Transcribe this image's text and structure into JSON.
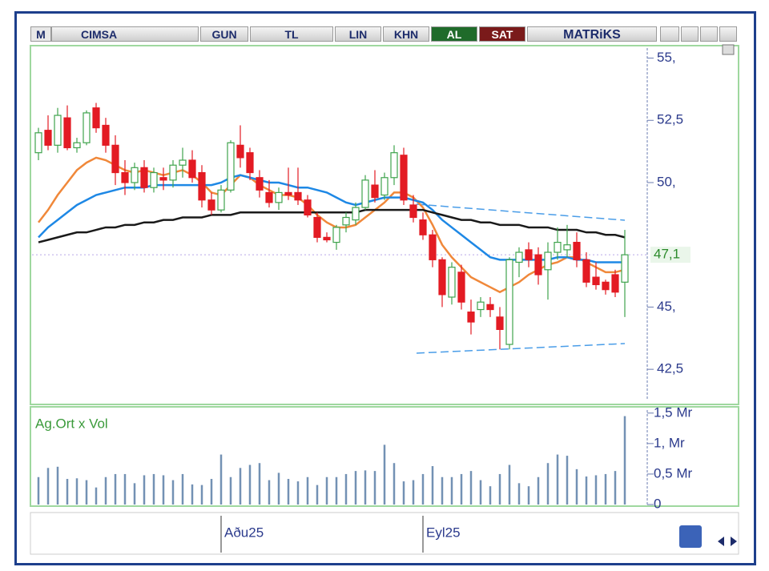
{
  "toolbar": {
    "logo": "M",
    "symbol": "CIMSA",
    "period": "GUN",
    "currency": "TL",
    "scale": "LIN",
    "mode": "KHN",
    "buy": "AL",
    "sell": "SAT",
    "brand": "MATRiKS"
  },
  "chart_data": [
    {
      "type": "candlestick",
      "categories": [
        null,
        null,
        null,
        null,
        null,
        null,
        null,
        null,
        null,
        null,
        null,
        null,
        null,
        null,
        null,
        null,
        null,
        null,
        null,
        "Aðu25",
        null,
        null,
        null,
        null,
        null,
        null,
        null,
        null,
        null,
        null,
        null,
        null,
        null,
        null,
        null,
        null,
        null,
        null,
        null,
        null,
        "Eyl25",
        null,
        null,
        null,
        null,
        null,
        null,
        null,
        null,
        null,
        null,
        null,
        null,
        null,
        null,
        null,
        null,
        null,
        null,
        null,
        null,
        null
      ],
      "open": [
        51.2,
        52.1,
        51.5,
        52.6,
        51.4,
        51.6,
        53.0,
        52.3,
        51.5,
        50.4,
        50.0,
        50.6,
        49.8,
        50.2,
        50.1,
        50.7,
        50.9,
        50.4,
        49.3,
        48.9,
        49.7,
        51.5,
        51.2,
        50.2,
        49.6,
        49.2,
        49.6,
        49.6,
        49.3,
        48.6,
        47.8,
        47.6,
        48.3,
        48.5,
        49.0,
        49.9,
        49.5,
        50.2,
        51.1,
        49.1,
        48.5,
        47.9,
        46.9,
        45.4,
        46.4,
        44.8,
        44.9,
        45.1,
        44.6,
        43.5,
        46.8,
        47.3,
        47.1,
        46.5,
        47.2,
        47.3,
        47.6,
        46.9,
        46.2,
        46.0,
        46.3,
        46.0
      ],
      "high": [
        52.2,
        52.7,
        53.0,
        53.1,
        51.8,
        52.9,
        53.2,
        52.6,
        51.9,
        50.9,
        50.8,
        50.9,
        50.6,
        50.6,
        50.9,
        51.4,
        51.3,
        50.7,
        49.6,
        49.9,
        51.7,
        52.3,
        51.4,
        50.5,
        50.1,
        49.8,
        50.6,
        50.6,
        49.5,
        48.8,
        48.0,
        48.3,
        48.8,
        49.2,
        50.3,
        50.5,
        50.4,
        51.5,
        51.4,
        49.5,
        48.8,
        48.1,
        47.0,
        46.8,
        46.7,
        45.3,
        45.4,
        45.4,
        45.0,
        47.0,
        47.4,
        47.6,
        47.4,
        47.6,
        48.2,
        48.3,
        48.0,
        47.2,
        46.8,
        46.1,
        46.5,
        48.1
      ],
      "low": [
        50.9,
        51.3,
        51.2,
        51.3,
        51.2,
        51.5,
        52.0,
        51.2,
        49.9,
        49.5,
        49.7,
        49.6,
        49.6,
        49.7,
        49.8,
        50.2,
        50.0,
        49.0,
        48.7,
        48.8,
        49.6,
        50.6,
        50.1,
        49.4,
        49.0,
        48.9,
        49.3,
        49.1,
        48.6,
        47.6,
        47.6,
        47.3,
        48.0,
        48.3,
        48.9,
        49.2,
        49.3,
        49.9,
        49.1,
        48.4,
        47.7,
        46.6,
        45.0,
        45.1,
        44.9,
        43.9,
        44.6,
        44.6,
        43.3,
        43.3,
        46.2,
        46.6,
        45.9,
        45.3,
        46.9,
        47.0,
        46.6,
        45.8,
        45.7,
        45.5,
        45.4,
        44.6
      ],
      "close": [
        52.0,
        51.5,
        52.7,
        51.4,
        51.6,
        52.8,
        52.2,
        51.5,
        50.4,
        50.0,
        50.6,
        49.8,
        50.4,
        50.1,
        50.7,
        50.9,
        50.2,
        49.3,
        48.9,
        49.7,
        51.6,
        51.0,
        50.4,
        49.7,
        49.2,
        49.6,
        49.5,
        49.3,
        48.7,
        47.8,
        47.7,
        48.2,
        48.6,
        49.0,
        50.1,
        49.4,
        50.2,
        51.2,
        49.3,
        48.6,
        47.9,
        46.9,
        45.5,
        46.6,
        45.2,
        44.4,
        45.2,
        44.9,
        44.1,
        46.9,
        47.2,
        46.9,
        46.3,
        47.2,
        47.6,
        47.5,
        46.9,
        46.0,
        45.9,
        45.7,
        45.6,
        47.1
      ],
      "up_color": "#3fa34d",
      "down_color": "#e31b23",
      "series": [
        {
          "color": "#f0883a",
          "values": [
            48.4,
            48.9,
            49.5,
            50.0,
            50.5,
            50.8,
            51.0,
            50.9,
            50.7,
            50.5,
            50.4,
            50.5,
            50.4,
            50.3,
            50.4,
            50.5,
            50.3,
            50.0,
            49.6,
            49.5,
            49.9,
            50.3,
            50.2,
            49.9,
            49.7,
            49.5,
            49.5,
            49.4,
            49.1,
            48.7,
            48.4,
            48.2,
            48.2,
            48.3,
            48.6,
            48.9,
            49.2,
            49.6,
            49.6,
            49.4,
            49.0,
            48.3,
            47.5,
            47.0,
            46.6,
            46.2,
            46.0,
            45.8,
            45.6,
            45.8,
            46.0,
            46.3,
            46.5,
            46.7,
            46.8,
            47.0,
            47.0,
            46.8,
            46.6,
            46.4,
            46.4,
            46.5
          ]
        },
        {
          "color": "#1e88e5",
          "values": [
            47.8,
            48.2,
            48.5,
            48.8,
            49.1,
            49.3,
            49.5,
            49.6,
            49.7,
            49.8,
            49.8,
            49.8,
            49.9,
            49.9,
            49.9,
            49.9,
            49.9,
            49.9,
            49.9,
            50.0,
            50.2,
            50.3,
            50.2,
            50.1,
            50.0,
            50.0,
            49.9,
            49.8,
            49.8,
            49.7,
            49.6,
            49.4,
            49.2,
            49.1,
            49.2,
            49.3,
            49.4,
            49.4,
            49.4,
            49.3,
            49.2,
            48.9,
            48.5,
            48.2,
            47.9,
            47.6,
            47.3,
            47.0,
            46.9,
            46.9,
            46.9,
            46.9,
            46.9,
            46.9,
            47.0,
            47.0,
            46.9,
            46.9,
            46.8,
            46.8,
            46.8,
            46.8
          ]
        },
        {
          "color": "#1a1a1a",
          "values": [
            47.6,
            47.7,
            47.8,
            47.9,
            48.0,
            48.0,
            48.1,
            48.2,
            48.2,
            48.3,
            48.3,
            48.4,
            48.4,
            48.5,
            48.5,
            48.6,
            48.6,
            48.6,
            48.7,
            48.7,
            48.7,
            48.8,
            48.8,
            48.8,
            48.8,
            48.8,
            48.8,
            48.8,
            48.8,
            48.8,
            48.8,
            48.8,
            48.8,
            48.8,
            48.9,
            48.9,
            48.9,
            48.9,
            48.9,
            48.9,
            48.9,
            48.8,
            48.7,
            48.6,
            48.5,
            48.5,
            48.4,
            48.4,
            48.3,
            48.3,
            48.3,
            48.2,
            48.2,
            48.2,
            48.1,
            48.1,
            48.1,
            48.0,
            48.0,
            47.9,
            47.9,
            47.8
          ]
        }
      ],
      "ylim": [
        41.25,
        55.5
      ],
      "yticks": [
        {
          "value": 55,
          "label": "55,"
        },
        {
          "value": 52.5,
          "label": "52,5"
        },
        {
          "value": 50,
          "label": "50,"
        },
        {
          "value": 45,
          "label": "45,"
        },
        {
          "value": 42.5,
          "label": "42,5"
        }
      ],
      "last_price": {
        "value": 47.1,
        "label": "47,1"
      }
    },
    {
      "type": "bar",
      "title": "Ag.Ort x Vol",
      "color": "#7391b4",
      "values": [
        0.45,
        0.6,
        0.62,
        0.42,
        0.43,
        0.4,
        0.28,
        0.45,
        0.5,
        0.5,
        0.35,
        0.48,
        0.5,
        0.48,
        0.4,
        0.5,
        0.33,
        0.32,
        0.42,
        0.82,
        0.45,
        0.6,
        0.65,
        0.68,
        0.4,
        0.52,
        0.42,
        0.38,
        0.45,
        0.32,
        0.45,
        0.45,
        0.5,
        0.55,
        0.56,
        0.55,
        0.98,
        0.68,
        0.38,
        0.4,
        0.5,
        0.63,
        0.45,
        0.45,
        0.5,
        0.55,
        0.4,
        0.3,
        0.5,
        0.65,
        0.35,
        0.3,
        0.45,
        0.68,
        0.82,
        0.8,
        0.58,
        0.46,
        0.48,
        0.5,
        0.55,
        1.45
      ],
      "ylim": [
        0,
        1.55
      ],
      "yticks": [
        {
          "value": 0,
          "label": "0"
        },
        {
          "value": 0.5,
          "label": "0,5 Mr"
        },
        {
          "value": 1,
          "label": "1, Mr"
        },
        {
          "value": 1.5,
          "label": "1,5 Mr"
        }
      ]
    }
  ]
}
